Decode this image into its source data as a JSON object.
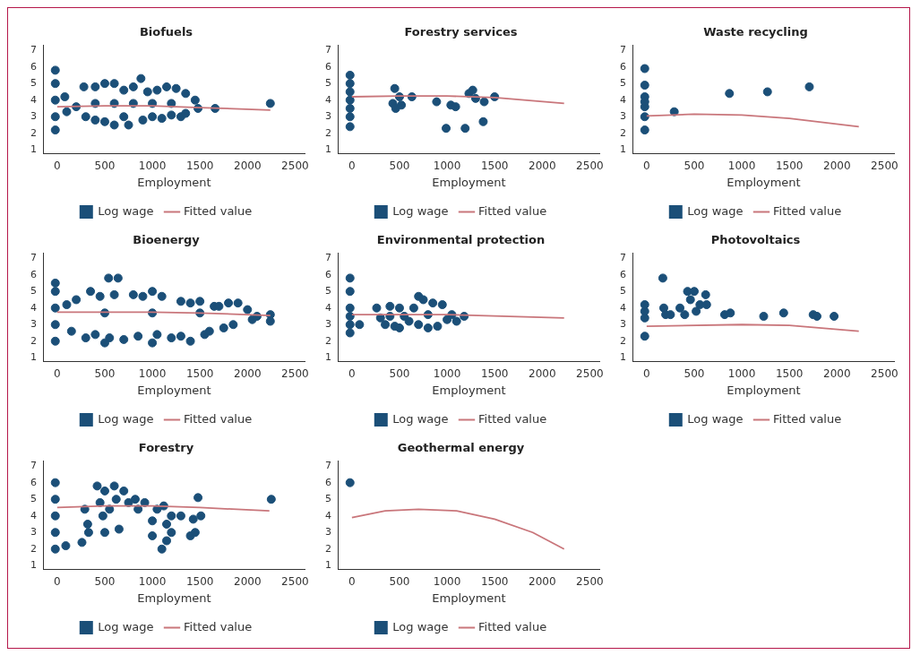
{
  "chart_data": [
    {
      "type": "scatter",
      "title": "Biofuels",
      "xlabel": "Employment",
      "xlim": [
        -140,
        2600
      ],
      "ylim": [
        0.8,
        7.3
      ],
      "xticks": [
        0,
        500,
        1000,
        1500,
        2000,
        2500
      ],
      "yticks": [
        1,
        2,
        3,
        4,
        5,
        6,
        7
      ],
      "grid": false,
      "legend": "bottom",
      "series": [
        {
          "name": "Log wage",
          "marker": "circle",
          "color": "#1b4f78",
          "x": [
            -20,
            -20,
            -20,
            -20,
            -20,
            80,
            100,
            200,
            280,
            300,
            400,
            400,
            400,
            500,
            500,
            600,
            600,
            600,
            700,
            700,
            750,
            800,
            800,
            880,
            900,
            950,
            1000,
            1000,
            1050,
            1100,
            1150,
            1200,
            1200,
            1250,
            1300,
            1350,
            1350,
            1450,
            1480,
            1660,
            2240
          ],
          "values": [
            2.2,
            3,
            4,
            5,
            5.8,
            4.2,
            3.3,
            3.6,
            4.8,
            3,
            2.8,
            4.8,
            3.8,
            5,
            2.7,
            5,
            2.5,
            3.8,
            4.6,
            3,
            2.5,
            4.8,
            3.8,
            5.3,
            2.8,
            4.5,
            3,
            3.8,
            4.6,
            2.9,
            4.8,
            3.1,
            3.8,
            4.7,
            3,
            4.4,
            3.2,
            4,
            3.5,
            3.5,
            3.8
          ]
        },
        {
          "name": "Fitted value",
          "type": "line",
          "color": "#c9767b",
          "x": [
            0,
            500,
            1000,
            1500,
            2240
          ],
          "values": [
            3.6,
            3.65,
            3.65,
            3.55,
            3.4
          ]
        }
      ]
    },
    {
      "type": "scatter",
      "title": "Forestry services",
      "xlabel": "Employment",
      "xlim": [
        -140,
        2600
      ],
      "ylim": [
        0.8,
        7.3
      ],
      "xticks": [
        0,
        500,
        1000,
        1500,
        2000,
        2500
      ],
      "yticks": [
        1,
        2,
        3,
        4,
        5,
        6,
        7
      ],
      "grid": false,
      "legend": "bottom",
      "series": [
        {
          "name": "Log wage",
          "marker": "circle",
          "color": "#1b4f78",
          "x": [
            -20,
            -20,
            -20,
            -20,
            -20,
            -20,
            -20,
            430,
            450,
            460,
            500,
            520,
            630,
            890,
            990,
            1040,
            1090,
            1190,
            1230,
            1270,
            1300,
            1380,
            1390,
            1500
          ],
          "values": [
            2.4,
            3,
            3.5,
            4,
            4.5,
            5,
            5.5,
            3.8,
            4.7,
            3.5,
            4.2,
            3.7,
            4.2,
            3.9,
            2.3,
            3.7,
            3.6,
            2.3,
            4.4,
            4.6,
            4.1,
            2.7,
            3.9,
            4.2
          ]
        },
        {
          "name": "Fitted value",
          "type": "line",
          "color": "#c9767b",
          "x": [
            0,
            500,
            1000,
            1500,
            2230
          ],
          "values": [
            4.2,
            4.25,
            4.25,
            4.15,
            3.8
          ]
        }
      ]
    },
    {
      "type": "scatter",
      "title": "Waste recycling",
      "xlabel": "Employment",
      "xlim": [
        -140,
        2600
      ],
      "ylim": [
        0.8,
        7.3
      ],
      "xticks": [
        0,
        500,
        1000,
        1500,
        2000,
        2500
      ],
      "yticks": [
        1,
        2,
        3,
        4,
        5,
        6,
        7
      ],
      "grid": false,
      "legend": "bottom",
      "series": [
        {
          "name": "Log wage",
          "marker": "circle",
          "color": "#1b4f78",
          "x": [
            -20,
            -20,
            -20,
            -20,
            -20,
            -20,
            -20,
            290,
            870,
            1270,
            1710
          ],
          "values": [
            2.2,
            3,
            3.6,
            3.9,
            4.2,
            4.9,
            5.9,
            3.3,
            4.4,
            4.5,
            4.8
          ]
        },
        {
          "name": "Fitted value",
          "type": "line",
          "color": "#c9767b",
          "x": [
            0,
            500,
            1000,
            1500,
            2230
          ],
          "values": [
            3.05,
            3.15,
            3.1,
            2.9,
            2.4
          ]
        }
      ]
    },
    {
      "type": "scatter",
      "title": "Bioenergy",
      "xlabel": "Employment",
      "xlim": [
        -140,
        2600
      ],
      "ylim": [
        0.8,
        7.3
      ],
      "xticks": [
        0,
        500,
        1000,
        1500,
        2000,
        2500
      ],
      "yticks": [
        1,
        2,
        3,
        4,
        5,
        6,
        7
      ],
      "grid": false,
      "legend": "bottom",
      "series": [
        {
          "name": "Log wage",
          "marker": "circle",
          "color": "#1b4f78",
          "x": [
            -20,
            -20,
            -20,
            -20,
            -20,
            100,
            150,
            200,
            300,
            350,
            400,
            450,
            500,
            540,
            550,
            600,
            640,
            700,
            800,
            850,
            900,
            1000,
            1000,
            1050,
            1100,
            1200,
            1300,
            1300,
            1400,
            1400,
            1500,
            1550,
            1600,
            1650,
            1700,
            1750,
            1800,
            1850,
            1900,
            2000,
            2050,
            2100,
            2240,
            2240,
            500,
            1000,
            1500
          ],
          "values": [
            2,
            3,
            4,
            5,
            5.5,
            4.2,
            2.6,
            4.5,
            2.2,
            5,
            2.4,
            4.7,
            1.9,
            5.8,
            2.2,
            4.8,
            5.8,
            2.1,
            4.8,
            2.3,
            4.7,
            1.9,
            5,
            2.4,
            4.7,
            2.2,
            4.4,
            2.3,
            4.3,
            2,
            4.4,
            2.4,
            2.6,
            4.1,
            4.1,
            2.8,
            4.3,
            3,
            4.3,
            3.9,
            3.3,
            3.5,
            3.2,
            3.6,
            3.7,
            3.7,
            3.7
          ]
        },
        {
          "name": "Fitted value",
          "type": "line",
          "color": "#c9767b",
          "x": [
            0,
            1000,
            1500,
            2240
          ],
          "values": [
            3.75,
            3.75,
            3.7,
            3.55
          ]
        }
      ]
    },
    {
      "type": "scatter",
      "title": "Environmental protection",
      "xlabel": "Employment",
      "xlim": [
        -140,
        2600
      ],
      "ylim": [
        0.8,
        7.3
      ],
      "xticks": [
        0,
        500,
        1000,
        1500,
        2000,
        2500
      ],
      "yticks": [
        1,
        2,
        3,
        4,
        5,
        6,
        7
      ],
      "grid": false,
      "legend": "bottom",
      "series": [
        {
          "name": "Log wage",
          "marker": "circle",
          "color": "#1b4f78",
          "x": [
            -20,
            -20,
            -20,
            -20,
            -20,
            -20,
            80,
            260,
            300,
            350,
            400,
            400,
            450,
            500,
            500,
            550,
            600,
            650,
            700,
            700,
            750,
            800,
            800,
            850,
            900,
            950,
            1000,
            1050,
            1100,
            1180
          ],
          "values": [
            2.5,
            3,
            3.5,
            4,
            5,
            5.8,
            3,
            4,
            3.4,
            3,
            4.1,
            3.5,
            2.9,
            4,
            2.8,
            3.5,
            3.2,
            4,
            4.7,
            3,
            4.5,
            2.8,
            3.6,
            4.3,
            2.9,
            4.2,
            3.3,
            3.6,
            3.2,
            3.5
          ]
        },
        {
          "name": "Fitted value",
          "type": "line",
          "color": "#c9767b",
          "x": [
            0,
            1000,
            2230
          ],
          "values": [
            3.6,
            3.6,
            3.4
          ]
        }
      ]
    },
    {
      "type": "scatter",
      "title": "Photovoltaics",
      "xlabel": "Employment",
      "xlim": [
        -140,
        2600
      ],
      "ylim": [
        0.8,
        7.3
      ],
      "xticks": [
        0,
        500,
        1000,
        1500,
        2000,
        2500
      ],
      "yticks": [
        1,
        2,
        3,
        4,
        5,
        6,
        7
      ],
      "grid": false,
      "legend": "bottom",
      "series": [
        {
          "name": "Log wage",
          "marker": "circle",
          "color": "#1b4f78",
          "x": [
            -20,
            -20,
            -20,
            -20,
            170,
            180,
            200,
            250,
            350,
            400,
            430,
            460,
            500,
            520,
            560,
            620,
            630,
            820,
            880,
            1230,
            1440,
            1750,
            1790,
            1970
          ],
          "values": [
            2.3,
            3.4,
            3.8,
            4.2,
            5.8,
            4,
            3.6,
            3.6,
            4,
            3.6,
            5,
            4.5,
            5,
            3.8,
            4.2,
            4.8,
            4.2,
            3.6,
            3.7,
            3.5,
            3.7,
            3.6,
            3.5,
            3.5
          ]
        },
        {
          "name": "Fitted value",
          "type": "line",
          "color": "#c9767b",
          "x": [
            0,
            1000,
            1500,
            2230
          ],
          "values": [
            2.9,
            3,
            2.95,
            2.6
          ]
        }
      ]
    },
    {
      "type": "scatter",
      "title": "Forestry",
      "xlabel": "Employment",
      "xlim": [
        -140,
        2600
      ],
      "ylim": [
        0.8,
        7.3
      ],
      "xticks": [
        0,
        500,
        1000,
        1500,
        2000,
        2500
      ],
      "yticks": [
        1,
        2,
        3,
        4,
        5,
        6,
        7
      ],
      "grid": false,
      "legend": "bottom",
      "series": [
        {
          "name": "Log wage",
          "marker": "circle",
          "color": "#1b4f78",
          "x": [
            -20,
            -20,
            -20,
            -20,
            -20,
            90,
            260,
            290,
            320,
            330,
            420,
            450,
            480,
            500,
            500,
            550,
            600,
            620,
            650,
            700,
            750,
            820,
            850,
            920,
            1000,
            1000,
            1050,
            1100,
            1120,
            1150,
            1150,
            1200,
            1200,
            1300,
            1400,
            1450,
            1430,
            1480,
            1510,
            2250
          ],
          "values": [
            2,
            3,
            4,
            5,
            6,
            2.2,
            2.4,
            4.4,
            3.5,
            3,
            5.8,
            4.8,
            4,
            5.5,
            3,
            4.4,
            5.8,
            5,
            3.2,
            5.5,
            4.8,
            5,
            4.4,
            4.8,
            2.8,
            3.7,
            4.4,
            2,
            4.6,
            2.5,
            3.5,
            3,
            4,
            4,
            2.8,
            3,
            3.8,
            5.1,
            4,
            5
          ]
        },
        {
          "name": "Fitted value",
          "type": "line",
          "color": "#c9767b",
          "x": [
            0,
            500,
            1000,
            1500,
            2230
          ],
          "values": [
            4.5,
            4.6,
            4.6,
            4.5,
            4.3
          ]
        }
      ]
    },
    {
      "type": "scatter",
      "title": "Geothermal energy",
      "xlabel": "Employment",
      "xlim": [
        -140,
        2600
      ],
      "ylim": [
        0.8,
        7.3
      ],
      "xticks": [
        0,
        500,
        1000,
        1500,
        2000,
        2500
      ],
      "yticks": [
        1,
        2,
        3,
        4,
        5,
        6,
        7
      ],
      "grid": false,
      "legend": "bottom",
      "series": [
        {
          "name": "Log wage",
          "marker": "circle",
          "color": "#1b4f78",
          "x": [
            -20
          ],
          "values": [
            6
          ]
        },
        {
          "name": "Fitted value",
          "type": "line",
          "color": "#c9767b",
          "x": [
            0,
            350,
            700,
            1100,
            1500,
            1900,
            2230
          ],
          "values": [
            3.9,
            4.3,
            4.4,
            4.3,
            3.8,
            3,
            2
          ]
        }
      ]
    }
  ]
}
